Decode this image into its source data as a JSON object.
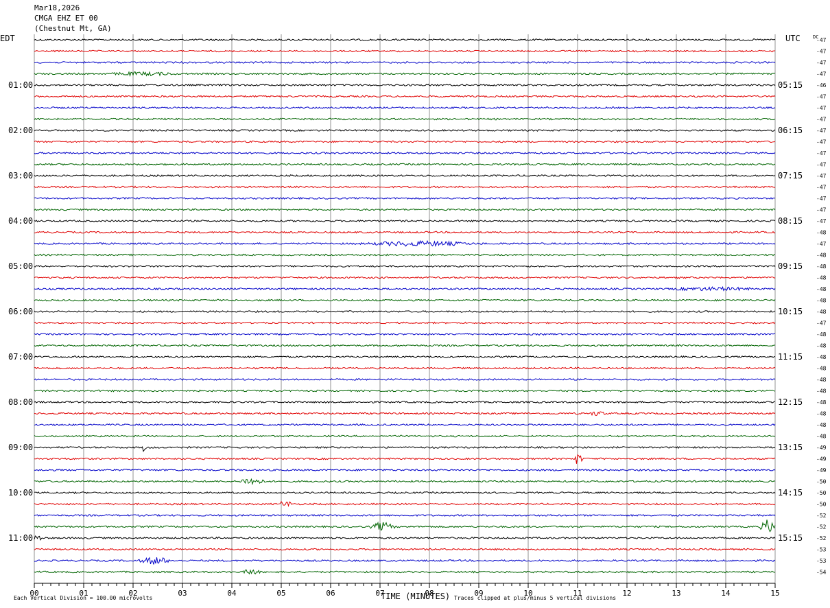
{
  "header": {
    "date": "Mar18,2026",
    "station": "CMGA EHZ ET 00",
    "location": "(Chestnut Mt, GA)"
  },
  "left_tz": "EDT",
  "right_tz": "UTC",
  "dc_label": "DC",
  "footer": {
    "scale_note": "Each Vertical Division =  100.00 microvolts",
    "xlabel": "TIME (MINUTES)",
    "clip_note": "Traces clipped at plus/minus 5 vertical divisions"
  },
  "chart_data": {
    "type": "line",
    "title": "",
    "xlabel": "TIME (MINUTES)",
    "xlim": [
      0,
      15
    ],
    "x_ticks": [
      "00",
      "01",
      "02",
      "03",
      "04",
      "05",
      "06",
      "07",
      "08",
      "09",
      "10",
      "11",
      "12",
      "13",
      "14",
      "15"
    ],
    "trace_colors": [
      "#000000",
      "#e00000",
      "#0000c8",
      "#006400"
    ],
    "left_hour_labels": [
      "01:00",
      "02:00",
      "03:00",
      "04:00",
      "05:00",
      "06:00",
      "07:00",
      "08:00",
      "09:00",
      "10:00",
      "11:00"
    ],
    "right_hour_labels": [
      "05:15",
      "06:15",
      "07:15",
      "08:15",
      "09:15",
      "10:15",
      "11:15",
      "12:15",
      "13:15",
      "14:15",
      "15:15"
    ],
    "dc_offsets": [
      "-47",
      "-47",
      "-47",
      "-47",
      "-46",
      "-47",
      "-47",
      "-47",
      "-47",
      "-47",
      "-47",
      "-47",
      "-47",
      "-47",
      "-47",
      "-47",
      "-47",
      "-48",
      "-47",
      "-48",
      "-48",
      "-48",
      "-48",
      "-48",
      "-48",
      "-47",
      "-48",
      "-48",
      "-48",
      "-48",
      "-48",
      "-48",
      "-48",
      "-48",
      "-48",
      "-48",
      "-49",
      "-49",
      "-49",
      "-50",
      "-50",
      "-50",
      "-52",
      "-52",
      "-52",
      "-53",
      "-53",
      "-54"
    ],
    "events": [
      {
        "trace": 3,
        "start": 1.2,
        "end": 3.2,
        "amp": 3
      },
      {
        "trace": 18,
        "start": 6.4,
        "end": 9.2,
        "amp": 4
      },
      {
        "trace": 22,
        "start": 12.5,
        "end": 15,
        "amp": 3
      },
      {
        "trace": 33,
        "start": 11.2,
        "end": 11.6,
        "amp": 4
      },
      {
        "trace": 36,
        "start": 2.2,
        "end": 2.3,
        "amp": 6
      },
      {
        "trace": 37,
        "start": 10.95,
        "end": 11.1,
        "amp": 8
      },
      {
        "trace": 39,
        "start": 4.1,
        "end": 4.7,
        "amp": 6
      },
      {
        "trace": 41,
        "start": 5.0,
        "end": 5.2,
        "amp": 4
      },
      {
        "trace": 43,
        "start": 6.8,
        "end": 7.3,
        "amp": 7
      },
      {
        "trace": 43,
        "start": 14.7,
        "end": 15,
        "amp": 11
      },
      {
        "trace": 44,
        "start": 0.0,
        "end": 0.15,
        "amp": 4
      },
      {
        "trace": 46,
        "start": 2.1,
        "end": 2.8,
        "amp": 6
      },
      {
        "trace": 47,
        "start": 4.2,
        "end": 4.6,
        "amp": 5
      }
    ]
  }
}
